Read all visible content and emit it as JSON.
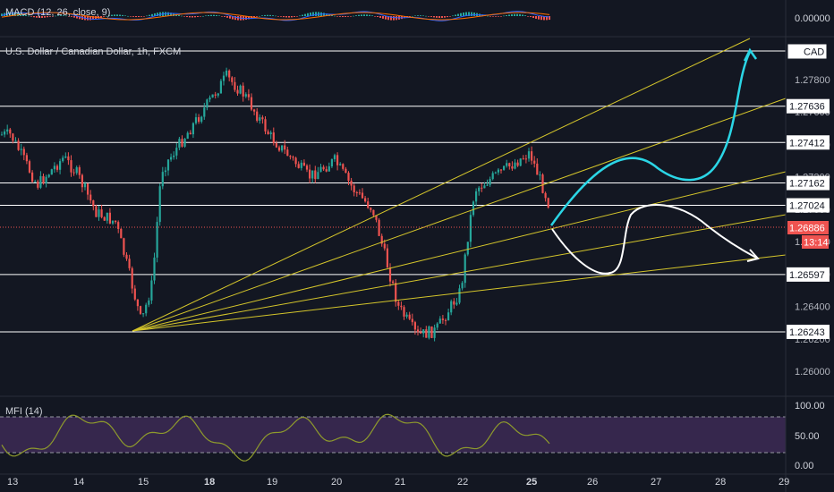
{
  "colors": {
    "background": "#131722",
    "up": "#26a69a",
    "down": "#ef5350",
    "grid": "#2a2e39",
    "fan": "#d4c52b",
    "projection_primary": "#2bd6e6",
    "projection_secondary": "#ffffff",
    "level_line": "#ffffff",
    "mfi_line": "#8e9a2c",
    "mfi_band": "#3d2a55",
    "macd_line": "#2962ff",
    "signal_line": "#ff6d00"
  },
  "macd_pane": {
    "title": "MACD (12, 26, close, 9)",
    "tick_label": "0.00000"
  },
  "price_pane": {
    "title": "U.S. Dollar / Canadian Dollar, 1h, FXCM",
    "currency_tag": "CAD"
  },
  "mfi_pane": {
    "title": "MFI (14)",
    "tick_labels": [
      "100.00",
      "50.00",
      "0.00"
    ]
  },
  "current_price": {
    "value": "1.26886",
    "countdown": "13:14"
  },
  "chart_data": {
    "type": "candlestick",
    "symbol": "USDCAD",
    "timeframe": "1h",
    "source": "FXCM",
    "y_ticks": [
      "1.27800",
      "1.27600",
      "1.27400",
      "1.27200",
      "1.27000",
      "1.26800",
      "1.26600",
      "1.26400",
      "1.26200",
      "1.26000"
    ],
    "horizontal_levels": [
      1.27636,
      1.27412,
      1.27162,
      1.27024,
      1.26597,
      1.26243
    ],
    "x_ticks": [
      "13",
      "14",
      "15",
      "18",
      "19",
      "20",
      "21",
      "22",
      "25",
      "26",
      "27",
      "28",
      "29"
    ],
    "bold_x_ticks": [
      "18",
      "25"
    ],
    "price_path": [
      {
        "x": "13",
        "y": 1.2746
      },
      {
        "x": "13.4",
        "y": 1.2715
      },
      {
        "x": "13.8",
        "y": 1.2732
      },
      {
        "x": "14",
        "y": 1.2722
      },
      {
        "x": "14.3",
        "y": 1.2698
      },
      {
        "x": "14.6",
        "y": 1.2692
      },
      {
        "x": "14.8",
        "y": 1.2662
      },
      {
        "x": "15",
        "y": 1.263
      },
      {
        "x": "15.5",
        "y": 1.2655
      },
      {
        "x": "15.9",
        "y": 1.2724
      },
      {
        "x": "18",
        "y": 1.2765
      },
      {
        "x": "18.3",
        "y": 1.2782
      },
      {
        "x": "18.6",
        "y": 1.277
      },
      {
        "x": "19",
        "y": 1.2745
      },
      {
        "x": "19.6",
        "y": 1.272
      },
      {
        "x": "20",
        "y": 1.273
      },
      {
        "x": "20.3",
        "y": 1.2712
      },
      {
        "x": "20.6",
        "y": 1.27
      },
      {
        "x": "20.8",
        "y": 1.267
      },
      {
        "x": "21",
        "y": 1.264
      },
      {
        "x": "21.3",
        "y": 1.2622
      },
      {
        "x": "21.6",
        "y": 1.2625
      },
      {
        "x": "22",
        "y": 1.265
      },
      {
        "x": "22.3",
        "y": 1.2683
      },
      {
        "x": "22.6",
        "y": 1.2712
      },
      {
        "x": "25",
        "y": 1.2735
      },
      {
        "x": "25.3",
        "y": 1.2705
      },
      {
        "x": "25.4",
        "y": 1.2689
      }
    ]
  }
}
